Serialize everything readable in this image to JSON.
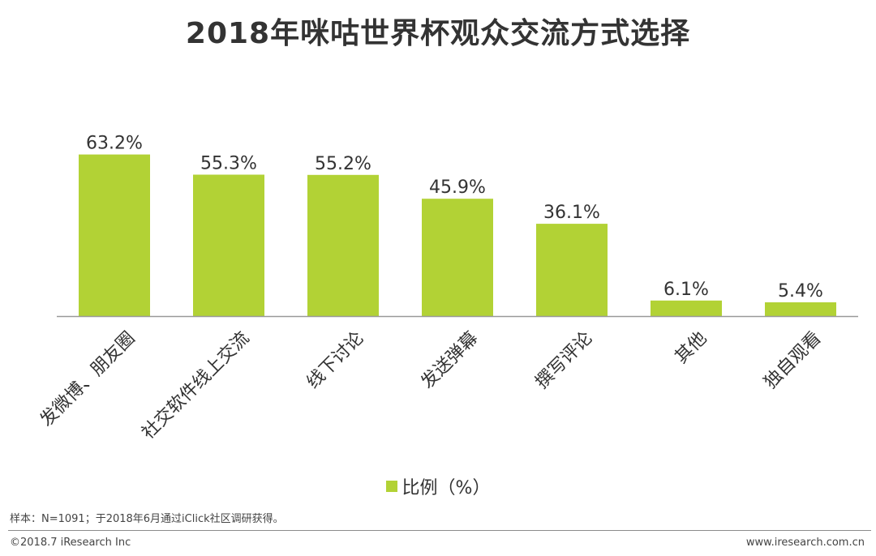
{
  "chart_data": {
    "type": "bar",
    "title": "2018年咪咕世界杯观众交流方式选择",
    "categories": [
      "发微博、朋友圈",
      "社交软件线上交流",
      "线下讨论",
      "发送弹幕",
      "撰写评论",
      "其他",
      "独自观看"
    ],
    "series": [
      {
        "name": "比例（%）",
        "values": [
          63.2,
          55.3,
          55.2,
          45.9,
          36.1,
          6.1,
          5.4
        ],
        "labels": [
          "63.2%",
          "55.3%",
          "55.2%",
          "45.9%",
          "36.1%",
          "6.1%",
          "5.4%"
        ]
      }
    ],
    "ylim": [
      0,
      70
    ],
    "grid": false,
    "legend_position": "bottom"
  },
  "colors": {
    "bar": "#b2d235",
    "axis": "#999999",
    "text": "#333333"
  },
  "footnote": "样本：N=1091；于2018年6月通过iClick社区调研获得。",
  "footer": {
    "copyright": "©2018.7 iResearch Inc",
    "website": "www.iresearch.com.cn"
  }
}
